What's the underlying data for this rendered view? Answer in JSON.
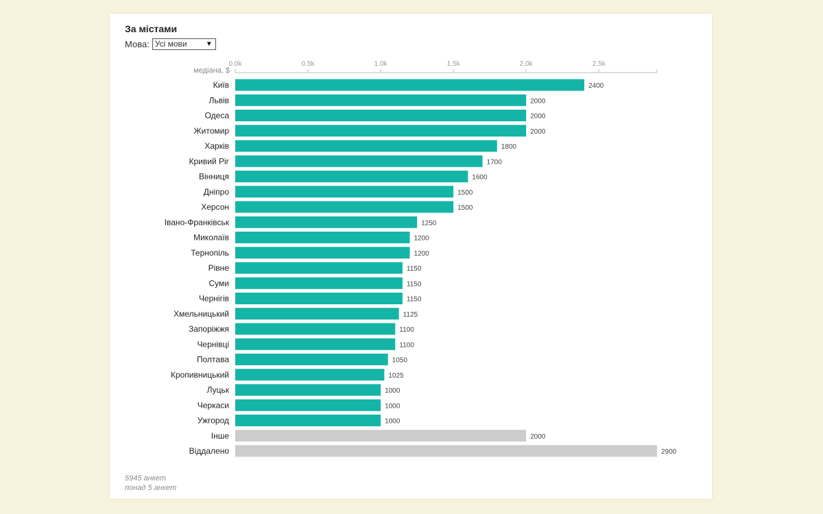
{
  "title": "За містами",
  "filter": {
    "label": "Мова:",
    "selected": "Усі мови",
    "arrow": "▼"
  },
  "colors": {
    "city_bar": "#14b5a6",
    "other_bar": "#cccccc"
  },
  "footnotes": [
    "5945 анкет",
    "понад 5 анкет"
  ],
  "chart_data": {
    "type": "bar",
    "orientation": "horizontal",
    "xlabel": "медіана, $",
    "xlim": [
      0,
      2900
    ],
    "ticks": [
      {
        "value": 0,
        "label": "0.0k"
      },
      {
        "value": 500,
        "label": "0.5k"
      },
      {
        "value": 1000,
        "label": "1.0k"
      },
      {
        "value": 1500,
        "label": "1.5k"
      },
      {
        "value": 2000,
        "label": "2.0k"
      },
      {
        "value": 2500,
        "label": "2.5k"
      }
    ],
    "categories": [
      "Київ",
      "Львів",
      "Одеса",
      "Житомир",
      "Харків",
      "Кривий Ріг",
      "Вінниця",
      "Дніпро",
      "Херсон",
      "Івано-Франківськ",
      "Миколаїв",
      "Тернопіль",
      "Рівне",
      "Суми",
      "Чернігів",
      "Хмельницький",
      "Запоріжжя",
      "Чернівці",
      "Полтава",
      "Кропивницький",
      "Луцьк",
      "Черкаси",
      "Ужгород",
      "Інше",
      "Віддалено"
    ],
    "values": [
      2400,
      2000,
      2000,
      2000,
      1800,
      1700,
      1600,
      1500,
      1500,
      1250,
      1200,
      1200,
      1150,
      1150,
      1150,
      1125,
      1100,
      1100,
      1050,
      1025,
      1000,
      1000,
      1000,
      2000,
      2900
    ],
    "groups": [
      "city",
      "city",
      "city",
      "city",
      "city",
      "city",
      "city",
      "city",
      "city",
      "city",
      "city",
      "city",
      "city",
      "city",
      "city",
      "city",
      "city",
      "city",
      "city",
      "city",
      "city",
      "city",
      "city",
      "other",
      "other"
    ]
  }
}
